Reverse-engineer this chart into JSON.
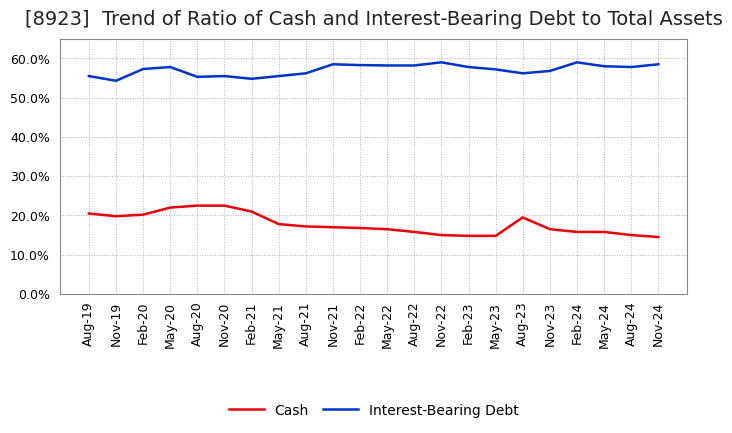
{
  "title": "[8923]  Trend of Ratio of Cash and Interest-Bearing Debt to Total Assets",
  "x_labels": [
    "Aug-19",
    "Nov-19",
    "Feb-20",
    "May-20",
    "Aug-20",
    "Nov-20",
    "Feb-21",
    "May-21",
    "Aug-21",
    "Nov-21",
    "Feb-22",
    "May-22",
    "Aug-22",
    "Nov-22",
    "Feb-23",
    "May-23",
    "Aug-23",
    "Nov-23",
    "Feb-24",
    "May-24",
    "Aug-24",
    "Nov-24"
  ],
  "cash": [
    0.205,
    0.198,
    0.202,
    0.22,
    0.225,
    0.225,
    0.21,
    0.178,
    0.172,
    0.17,
    0.168,
    0.165,
    0.158,
    0.15,
    0.148,
    0.148,
    0.195,
    0.165,
    0.158,
    0.158,
    0.15,
    0.145
  ],
  "ibd": [
    0.555,
    0.543,
    0.573,
    0.578,
    0.553,
    0.555,
    0.548,
    0.555,
    0.562,
    0.585,
    0.583,
    0.582,
    0.582,
    0.59,
    0.578,
    0.572,
    0.562,
    0.568,
    0.59,
    0.58,
    0.578,
    0.585
  ],
  "cash_color": "#e8000a",
  "ibd_color": "#0033cc",
  "bg_color": "#ffffff",
  "plot_bg_color": "#ffffff",
  "grid_color": "#b0b0b0",
  "border_color": "#888888",
  "ylim": [
    0.0,
    0.65
  ],
  "yticks": [
    0.0,
    0.1,
    0.2,
    0.3,
    0.4,
    0.5,
    0.6
  ],
  "legend_cash": "Cash",
  "legend_ibd": "Interest-Bearing Debt",
  "title_fontsize": 14,
  "tick_fontsize": 9,
  "legend_fontsize": 10,
  "line_width": 1.8
}
